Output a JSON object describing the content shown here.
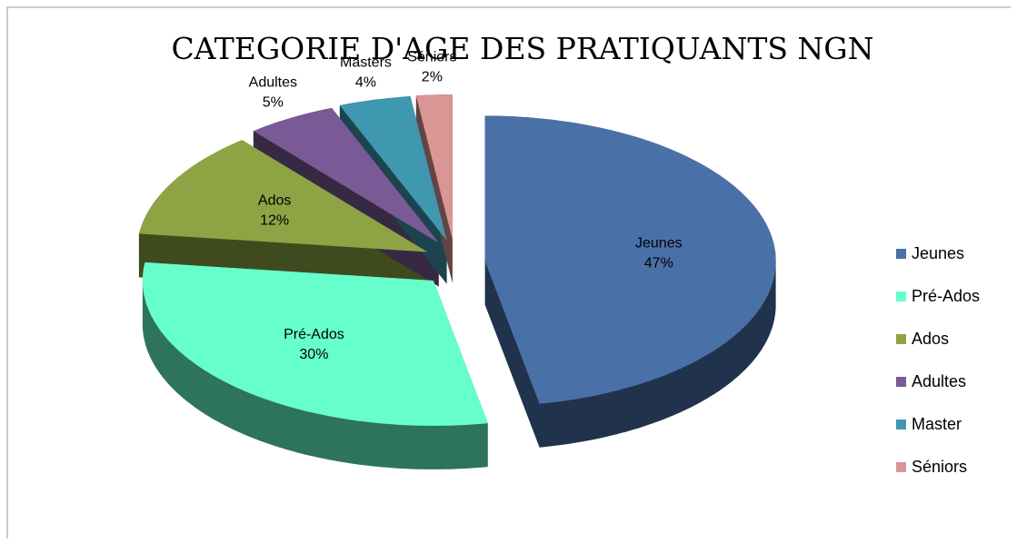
{
  "chart_data": {
    "type": "pie",
    "title": "CATEGORIE D'AGE DES PRATIQUANTS NGN",
    "categories": [
      "Jeunes",
      "Pré-Ados",
      "Ados",
      "Adultes",
      "Master",
      "Séniors"
    ],
    "label_categories": [
      "Jeunes",
      "Pré-Ados",
      "Ados",
      "Adultes",
      "Masters",
      "Séniors"
    ],
    "values": [
      47,
      30,
      12,
      5,
      4,
      2
    ],
    "value_labels": [
      "47%",
      "30%",
      "12%",
      "5%",
      "4%",
      "2%"
    ],
    "colors": [
      "#4a70a8",
      "#66ffcc",
      "#8ea444",
      "#7a5a96",
      "#3f97b0",
      "#d99694"
    ],
    "legend": "right"
  }
}
